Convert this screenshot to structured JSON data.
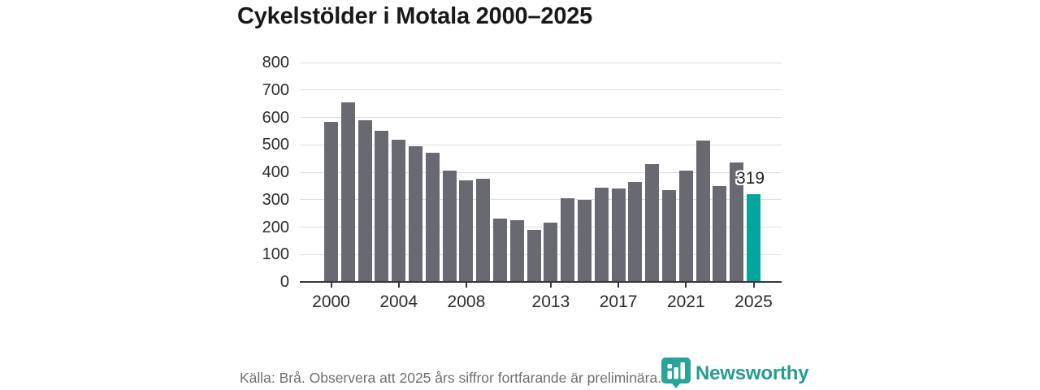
{
  "title": "Cykelstölder i Motala 2000–2025",
  "chart_data": {
    "type": "bar",
    "title": "Cykelstölder i Motala 2000–2025",
    "categories": [
      2000,
      2001,
      2002,
      2003,
      2004,
      2005,
      2006,
      2007,
      2008,
      2009,
      2010,
      2011,
      2012,
      2013,
      2014,
      2015,
      2016,
      2017,
      2018,
      2019,
      2020,
      2021,
      2022,
      2023,
      2024,
      2025
    ],
    "values": [
      585,
      655,
      590,
      550,
      520,
      495,
      470,
      405,
      370,
      375,
      230,
      225,
      190,
      215,
      305,
      300,
      345,
      340,
      365,
      430,
      335,
      405,
      515,
      350,
      435,
      319
    ],
    "xlabel": "",
    "ylabel": "",
    "ylim": [
      0,
      800
    ],
    "ytick_step": 100,
    "xticks": [
      2000,
      2004,
      2008,
      2013,
      2017,
      2021,
      2025
    ],
    "grid": true,
    "legend_position": "none",
    "bar_color": "#696971",
    "highlight_category": 2025,
    "highlight_color": "#00a59b",
    "highlight_value_label": "319",
    "value_label_color": "#232323"
  },
  "footer": {
    "source_note": "Källa: Brå. Observera att 2025 års siffror fortfarande är preliminära."
  },
  "branding": {
    "logo_text": "Newsworthy",
    "logo_icon": "newsworthy-pin-barchart-icon",
    "logo_color": "#259b91",
    "pin_color": "#2aa39a"
  }
}
